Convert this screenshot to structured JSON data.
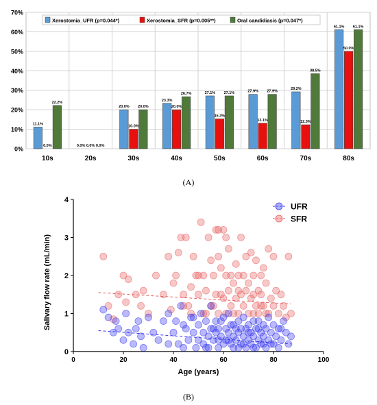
{
  "panel_labels": {
    "a": "(A)",
    "b": "(B)"
  },
  "chart_data": [
    {
      "type": "bar",
      "categories": [
        "10s",
        "20s",
        "30s",
        "40s",
        "50s",
        "60s",
        "70s",
        "80s"
      ],
      "ylim": [
        0,
        70
      ],
      "yticks": [
        "0%",
        "10%",
        "20%",
        "30%",
        "40%",
        "50%",
        "60%",
        "70%"
      ],
      "grid": true,
      "legend_position": "top",
      "series": [
        {
          "name": "Xerostomia_UFR (p=0.044*)",
          "color": "#5b9bd5",
          "values": [
            11.1,
            0.0,
            20.0,
            23.3,
            27.1,
            27.9,
            29.2,
            61.1
          ],
          "labels": [
            "11.1%",
            "0.0%",
            "20.0%",
            "23.3%",
            "27.1%",
            "27.9%",
            "29.2%",
            "61.1%"
          ]
        },
        {
          "name": "Xerostomia_SFR (p=0.005**)",
          "color": "#e8100e",
          "values": [
            0.0,
            0.0,
            10.0,
            20.0,
            15.3,
            13.1,
            12.3,
            50.0
          ],
          "labels": [
            "0.0%",
            "0.0%",
            "10.0%",
            "20.0%",
            "15.3%",
            "13.1%",
            "12.3%",
            "50.0%"
          ]
        },
        {
          "name": "Oral candidiasis (p=0.047*)",
          "color": "#4f7a3a",
          "values": [
            22.2,
            0.0,
            20.0,
            26.7,
            27.1,
            27.9,
            38.5,
            61.1
          ],
          "labels": [
            "22.2%",
            "0.0%",
            "20.0%",
            "26.7%",
            "27.1%",
            "27.9%",
            "38.5%",
            "61.1%"
          ]
        }
      ]
    },
    {
      "type": "scatter",
      "xlabel": "Age (years)",
      "ylabel": "Salivary flow rate (mL/min)",
      "xlim": [
        0,
        100
      ],
      "ylim": [
        0,
        4
      ],
      "xticks": [
        "0",
        "20",
        "40",
        "60",
        "80",
        "100"
      ],
      "yticks": [
        "0",
        "1",
        "2",
        "3",
        "4"
      ],
      "legend_position": "top-right",
      "series": [
        {
          "name": "UFR",
          "color": "#3a3af0",
          "trend": {
            "x": [
              10,
              87
            ],
            "y": [
              0.55,
              0.2
            ]
          },
          "points": [
            [
              12,
              1.1
            ],
            [
              14,
              0.9
            ],
            [
              16,
              0.5
            ],
            [
              17,
              0.8
            ],
            [
              18,
              0.6
            ],
            [
              20,
              0.3
            ],
            [
              21,
              1.0
            ],
            [
              22,
              0.5
            ],
            [
              24,
              0.2
            ],
            [
              25,
              0.6
            ],
            [
              26,
              0.8
            ],
            [
              27,
              0.4
            ],
            [
              28,
              0.1
            ],
            [
              30,
              0.9
            ],
            [
              32,
              0.5
            ],
            [
              34,
              0.3
            ],
            [
              36,
              0.8
            ],
            [
              38,
              0.2
            ],
            [
              38,
              1.0
            ],
            [
              40,
              0.5
            ],
            [
              41,
              0.8
            ],
            [
              42,
              0.2
            ],
            [
              43,
              1.2
            ],
            [
              44,
              0.1
            ],
            [
              45,
              0.6
            ],
            [
              46,
              0.3
            ],
            [
              47,
              0.9
            ],
            [
              48,
              0.5
            ],
            [
              49,
              0.1
            ],
            [
              50,
              0.7
            ],
            [
              50,
              0.3
            ],
            [
              51,
              1.0
            ],
            [
              52,
              0.5
            ],
            [
              52,
              0.2
            ],
            [
              53,
              0.8
            ],
            [
              54,
              0.4
            ],
            [
              54,
              0.1
            ],
            [
              55,
              0.6
            ],
            [
              55,
              1.2
            ],
            [
              56,
              0.3
            ],
            [
              57,
              0.8
            ],
            [
              57,
              0.5
            ],
            [
              58,
              0.1
            ],
            [
              58,
              0.6
            ],
            [
              59,
              0.4
            ],
            [
              60,
              0.9
            ],
            [
              60,
              0.2
            ],
            [
              61,
              0.6
            ],
            [
              61,
              0.3
            ],
            [
              62,
              0.5
            ],
            [
              62,
              1.0
            ],
            [
              63,
              0.2
            ],
            [
              63,
              0.7
            ],
            [
              64,
              0.4
            ],
            [
              64,
              0.1
            ],
            [
              65,
              0.6
            ],
            [
              65,
              0.3
            ],
            [
              66,
              0.8
            ],
            [
              66,
              0.5
            ],
            [
              67,
              0.2
            ],
            [
              67,
              0.6
            ],
            [
              68,
              0.4
            ],
            [
              68,
              0.9
            ],
            [
              69,
              0.1
            ],
            [
              69,
              0.6
            ],
            [
              70,
              0.3
            ],
            [
              70,
              0.7
            ],
            [
              71,
              0.5
            ],
            [
              71,
              0.2
            ],
            [
              72,
              0.8
            ],
            [
              72,
              0.4
            ],
            [
              73,
              0.6
            ],
            [
              73,
              0.1
            ],
            [
              74,
              0.3
            ],
            [
              74,
              0.8
            ],
            [
              75,
              0.5
            ],
            [
              75,
              0.2
            ],
            [
              76,
              0.7
            ],
            [
              76,
              0.4
            ],
            [
              77,
              0.1
            ],
            [
              77,
              0.6
            ],
            [
              78,
              0.3
            ],
            [
              78,
              0.9
            ],
            [
              79,
              0.5
            ],
            [
              80,
              0.2
            ],
            [
              80,
              0.7
            ],
            [
              81,
              0.4
            ],
            [
              82,
              0.1
            ],
            [
              82,
              0.6
            ],
            [
              83,
              0.3
            ],
            [
              84,
              0.8
            ],
            [
              85,
              0.5
            ],
            [
              86,
              0.2
            ],
            [
              87,
              0.4
            ],
            [
              44,
              0.7
            ],
            [
              48,
              0.9
            ],
            [
              53,
              0.1
            ],
            [
              56,
              0.6
            ],
            [
              59,
              0.8
            ],
            [
              62,
              0.3
            ],
            [
              66,
              0.1
            ],
            [
              70,
              0.5
            ],
            [
              74,
              0.6
            ],
            [
              79,
              0.2
            ],
            [
              83,
              0.6
            ],
            [
              58,
              0.3
            ],
            [
              64,
              0.7
            ],
            [
              68,
              0.2
            ],
            [
              72,
              0.1
            ],
            [
              76,
              0.2
            ]
          ]
        },
        {
          "name": "SFR",
          "color": "#e86060",
          "trend": {
            "x": [
              10,
              87
            ],
            "y": [
              1.55,
              1.25
            ]
          },
          "points": [
            [
              12,
              2.5
            ],
            [
              14,
              1.2
            ],
            [
              16,
              0.85
            ],
            [
              18,
              1.5
            ],
            [
              20,
              2.0
            ],
            [
              21,
              1.3
            ],
            [
              22,
              1.9
            ],
            [
              25,
              1.5
            ],
            [
              27,
              1.2
            ],
            [
              28,
              1.6
            ],
            [
              30,
              1.0
            ],
            [
              33,
              2.0
            ],
            [
              36,
              1.5
            ],
            [
              38,
              2.5
            ],
            [
              39,
              1.1
            ],
            [
              40,
              1.8
            ],
            [
              41,
              2.0
            ],
            [
              42,
              2.6
            ],
            [
              43,
              3.0
            ],
            [
              44,
              1.5
            ],
            [
              45,
              3.0
            ],
            [
              46,
              1.2
            ],
            [
              47,
              1.7
            ],
            [
              48,
              2.5
            ],
            [
              49,
              2.0
            ],
            [
              50,
              1.5
            ],
            [
              51,
              3.4
            ],
            [
              52,
              1.0
            ],
            [
              52,
              2.0
            ],
            [
              53,
              1.6
            ],
            [
              54,
              3.0
            ],
            [
              55,
              2.4
            ],
            [
              55,
              1.2
            ],
            [
              56,
              2.0
            ],
            [
              57,
              3.2
            ],
            [
              57,
              1.5
            ],
            [
              58,
              2.5
            ],
            [
              58,
              1.0
            ],
            [
              59,
              2.2
            ],
            [
              60,
              3.2
            ],
            [
              60,
              1.4
            ],
            [
              61,
              2.0
            ],
            [
              61,
              1.0
            ],
            [
              62,
              1.6
            ],
            [
              62,
              2.7
            ],
            [
              63,
              2.0
            ],
            [
              63,
              1.2
            ],
            [
              64,
              1.8
            ],
            [
              65,
              1.4
            ],
            [
              65,
              2.3
            ],
            [
              66,
              1.0
            ],
            [
              66,
              2.0
            ],
            [
              67,
              1.5
            ],
            [
              67,
              3.0
            ],
            [
              68,
              1.2
            ],
            [
              68,
              2.0
            ],
            [
              69,
              1.6
            ],
            [
              69,
              2.5
            ],
            [
              70,
              1.0
            ],
            [
              70,
              1.8
            ],
            [
              71,
              1.4
            ],
            [
              71,
              2.6
            ],
            [
              72,
              2.0
            ],
            [
              72,
              1.5
            ],
            [
              73,
              1.2
            ],
            [
              73,
              2.4
            ],
            [
              74,
              1.6
            ],
            [
              74,
              1.0
            ],
            [
              75,
              2.0
            ],
            [
              75,
              1.5
            ],
            [
              76,
              1.2
            ],
            [
              76,
              2.2
            ],
            [
              77,
              1.8
            ],
            [
              78,
              1.0
            ],
            [
              78,
              2.7
            ],
            [
              79,
              1.4
            ],
            [
              80,
              2.5
            ],
            [
              80,
              1.2
            ],
            [
              81,
              1.6
            ],
            [
              82,
              1.0
            ],
            [
              83,
              1.5
            ],
            [
              84,
              1.2
            ],
            [
              85,
              0.9
            ],
            [
              86,
              2.5
            ],
            [
              87,
              1.0
            ],
            [
              47,
              1.0
            ],
            [
              50,
              2.0
            ],
            [
              53,
              1.0
            ],
            [
              56,
              1.2
            ],
            [
              59,
              1.5
            ],
            [
              64,
              1.0
            ],
            [
              66,
              1.6
            ],
            [
              72,
              1.0
            ],
            [
              75,
              1.2
            ],
            [
              77,
              1.0
            ],
            [
              61,
              3.0
            ],
            [
              58,
              3.2
            ],
            [
              44,
              1.2
            ]
          ]
        }
      ]
    }
  ]
}
